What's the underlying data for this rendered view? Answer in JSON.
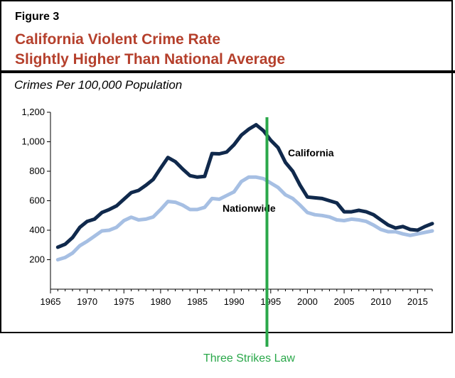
{
  "figure_label": "Figure 3",
  "title_line1": "California Violent Crime Rate",
  "title_line2": "Slightly Higher Than National Average",
  "subtitle": "Crimes Per 100,000 Population",
  "annotation": "Three Strikes Law",
  "colors": {
    "title": "#b5402c",
    "california": "#10294c",
    "nationwide": "#a6bfe3",
    "annotation": "#2aa84a"
  },
  "chart_data": {
    "type": "line",
    "title": "California Violent Crime Rate Slightly Higher Than National Average",
    "ylabel": "Crimes Per 100,000 Population",
    "xlabel": "",
    "xlim": [
      1965,
      2017
    ],
    "ylim": [
      0,
      1200
    ],
    "x_ticks": [
      1965,
      1970,
      1975,
      1980,
      1985,
      1990,
      1995,
      2000,
      2005,
      2010,
      2015
    ],
    "y_ticks": [
      200,
      400,
      600,
      800,
      1000,
      1200
    ],
    "y_tick_labels": [
      "200",
      "400",
      "600",
      "800",
      "1,000",
      "1,200"
    ],
    "x": [
      1966,
      1967,
      1968,
      1969,
      1970,
      1971,
      1972,
      1973,
      1974,
      1975,
      1976,
      1977,
      1978,
      1979,
      1980,
      1981,
      1982,
      1983,
      1984,
      1985,
      1986,
      1987,
      1988,
      1989,
      1990,
      1991,
      1992,
      1993,
      1994,
      1995,
      1996,
      1997,
      1998,
      1999,
      2000,
      2001,
      2002,
      2003,
      2004,
      2005,
      2006,
      2007,
      2008,
      2009,
      2010,
      2011,
      2012,
      2013,
      2014,
      2015,
      2016,
      2017
    ],
    "series": [
      {
        "name": "California",
        "label_position": "right-of-peak",
        "values": [
          285,
          305,
          350,
          420,
          460,
          475,
          520,
          540,
          565,
          610,
          655,
          670,
          705,
          745,
          820,
          893,
          865,
          815,
          770,
          760,
          765,
          920,
          918,
          930,
          980,
          1045,
          1085,
          1115,
          1075,
          1010,
          960,
          860,
          800,
          705,
          625,
          620,
          615,
          600,
          585,
          525,
          525,
          535,
          525,
          505,
          470,
          435,
          415,
          425,
          405,
          400,
          425,
          445
        ]
      },
      {
        "name": "Nationwide",
        "label_position": "below-peak",
        "values": [
          200,
          215,
          245,
          295,
          325,
          360,
          395,
          400,
          420,
          465,
          488,
          470,
          475,
          490,
          540,
          595,
          590,
          570,
          540,
          540,
          555,
          615,
          610,
          635,
          660,
          730,
          760,
          760,
          750,
          720,
          690,
          640,
          615,
          570,
          520,
          505,
          500,
          490,
          470,
          465,
          475,
          470,
          460,
          435,
          405,
          390,
          390,
          375,
          365,
          375,
          385,
          395
        ]
      }
    ],
    "reference_line": {
      "x": 1994,
      "label": "Three Strikes Law"
    }
  }
}
